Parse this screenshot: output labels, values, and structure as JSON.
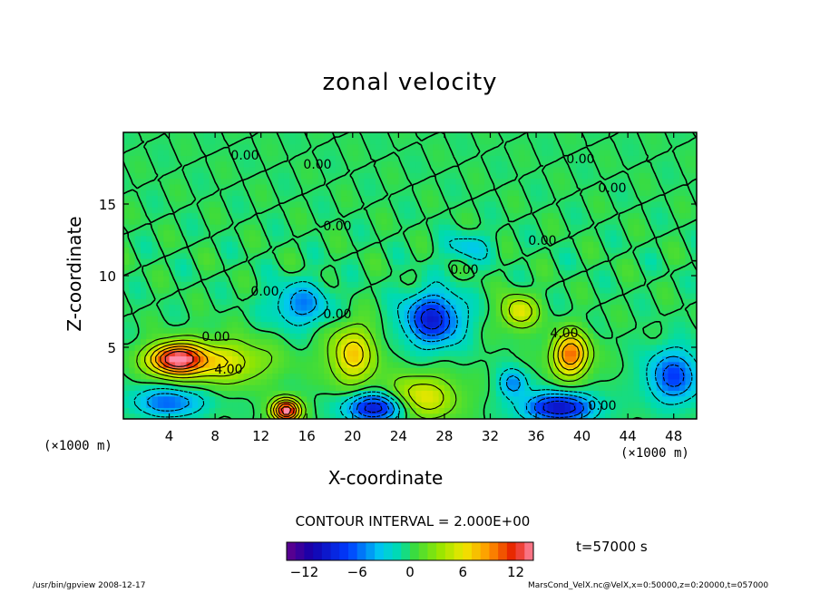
{
  "chart_data": {
    "type": "heatmap",
    "title": "zonal velocity",
    "xlabel": "X-coordinate",
    "ylabel": "Z-coordinate",
    "x_unit": "(×1000 m)",
    "xlim": [
      0,
      50
    ],
    "ylim": [
      0,
      20
    ],
    "x_ticks": [
      "4",
      "8",
      "12",
      "16",
      "20",
      "24",
      "28",
      "32",
      "36",
      "40",
      "44",
      "48"
    ],
    "y_ticks": [
      "5",
      "10",
      "15"
    ],
    "contour_interval": "CONTOUR INTERVAL = 2.000E+00",
    "contour_labels": [
      "0.00",
      "0.00",
      "0.00",
      "0.00",
      "0.00",
      "0.00",
      "0.00",
      "0.00",
      "0.00",
      "0.00",
      "0.00",
      "4.00",
      "4.00"
    ],
    "colorbar": {
      "range": [
        -14,
        14
      ],
      "ticks": [
        "−12",
        "−6",
        "0",
        "6",
        "12"
      ]
    },
    "features": [
      {
        "x": 4.5,
        "z": 4.2,
        "value": 12,
        "sx": 2.2,
        "sz": 1.0
      },
      {
        "x": 8,
        "z": 4.0,
        "value": 6,
        "sx": 4.5,
        "sz": 1.5
      },
      {
        "x": 14.2,
        "z": 0.6,
        "value": 14,
        "sx": 1.2,
        "sz": 0.8
      },
      {
        "x": 20,
        "z": 4.5,
        "value": 7,
        "sx": 2.0,
        "sz": 2.0
      },
      {
        "x": 27,
        "z": 7.0,
        "value": -9,
        "sx": 2.5,
        "sz": 1.8
      },
      {
        "x": 15.5,
        "z": 8.0,
        "value": -5,
        "sx": 2.5,
        "sz": 1.5
      },
      {
        "x": 22,
        "z": 0.8,
        "value": -10,
        "sx": 2.5,
        "sz": 1.0
      },
      {
        "x": 38,
        "z": 0.8,
        "value": -10,
        "sx": 3.0,
        "sz": 1.0
      },
      {
        "x": 39,
        "z": 4.5,
        "value": 10,
        "sx": 1.6,
        "sz": 1.5
      },
      {
        "x": 34.5,
        "z": 7.5,
        "value": 6,
        "sx": 1.5,
        "sz": 1.2
      },
      {
        "x": 48,
        "z": 3.0,
        "value": -7,
        "sx": 2.2,
        "sz": 1.8
      },
      {
        "x": 4,
        "z": 1.2,
        "value": -6,
        "sx": 3.0,
        "sz": 1.0
      },
      {
        "x": 26,
        "z": 1.5,
        "value": 6,
        "sx": 3.0,
        "sz": 1.5
      },
      {
        "x": 34,
        "z": 2.5,
        "value": -5,
        "sx": 1.2,
        "sz": 1.0
      },
      {
        "x": 30,
        "z": 12.0,
        "value": -3,
        "sx": 2.0,
        "sz": 1.0
      }
    ]
  },
  "time_label": "t=57000 s",
  "footer": {
    "left": "/usr/bin/gpview   2008-12-17",
    "right": "MarsCond_VelX.nc@VelX,x=0:50000,z=0:20000,t=057000"
  }
}
